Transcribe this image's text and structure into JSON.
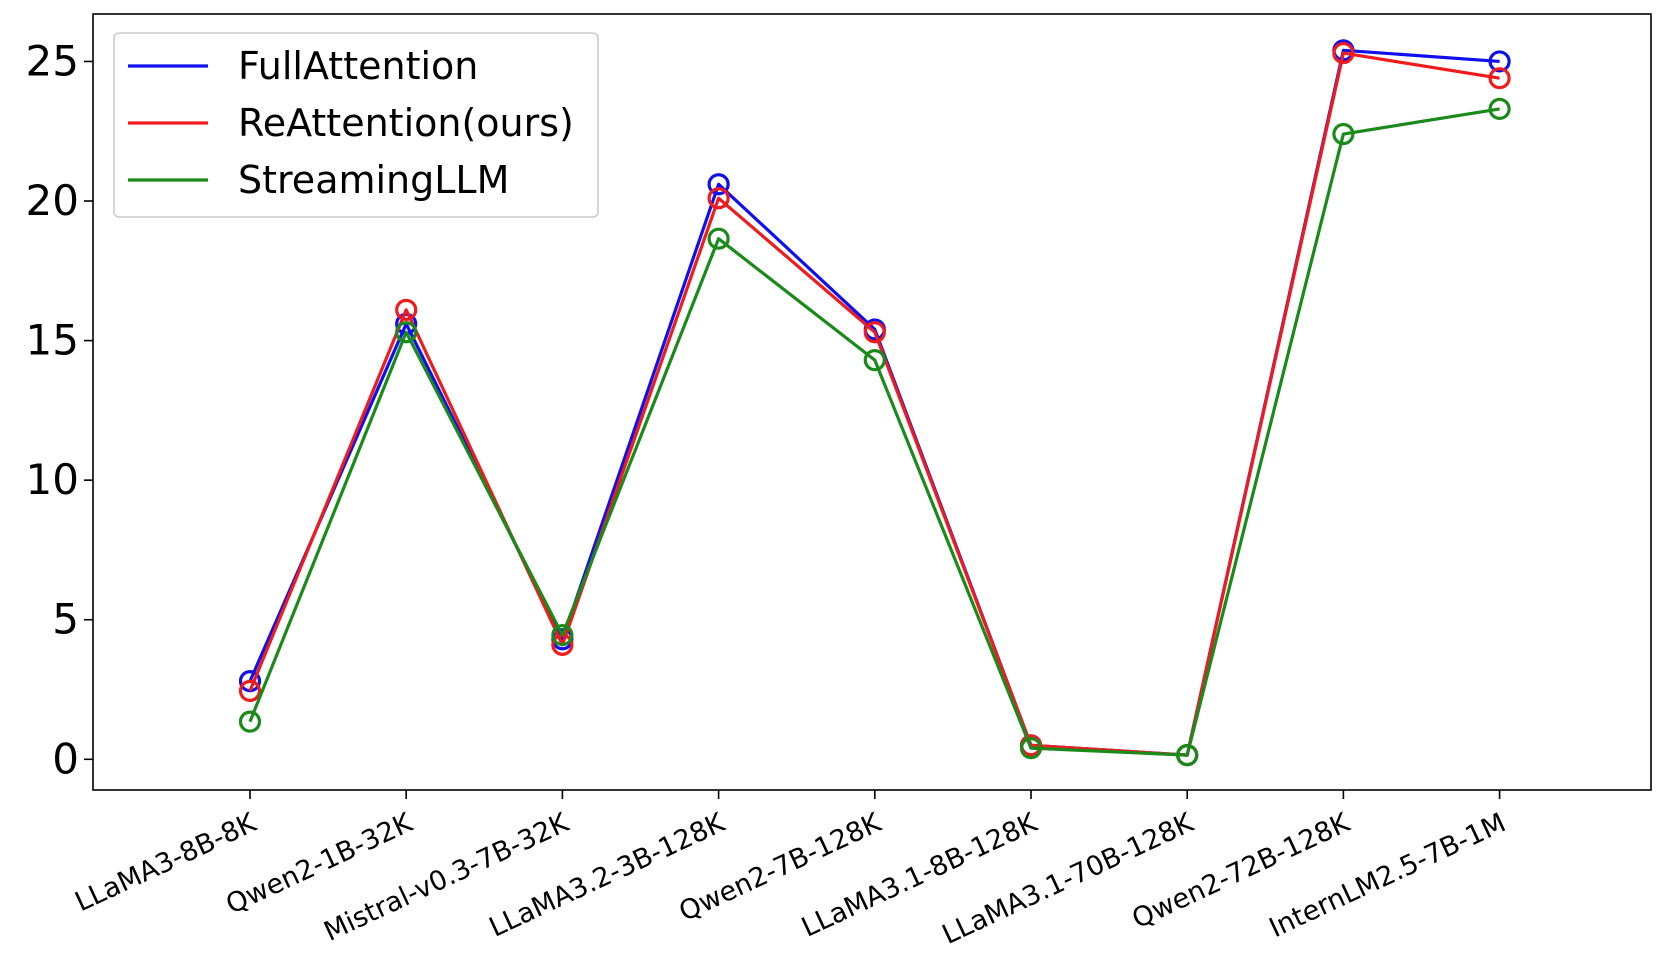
{
  "chart_data": {
    "type": "line",
    "title": "",
    "xlabel": "",
    "ylabel": "",
    "categories": [
      "LLaMA3-8B-8K",
      "Qwen2-1B-32K",
      "Mistral-v0.3-7B-32K",
      "LLaMA3.2-3B-128K",
      "Qwen2-7B-128K",
      "LLaMA3.1-8B-128K",
      "LLaMA3.1-70B-128K",
      "Qwen2-72B-128K",
      "InternLM2.5-7B-1M"
    ],
    "ylim": [
      -1.1,
      26.7
    ],
    "yticks": [
      0,
      5,
      10,
      15,
      20,
      25
    ],
    "legend_position": "top-left",
    "grid": false,
    "marker": "open-circle",
    "series": [
      {
        "name": "FullAttention",
        "color": "#1010ee",
        "values": [
          2.8,
          15.6,
          4.3,
          20.6,
          15.4,
          0.5,
          0.15,
          25.4,
          25.0
        ]
      },
      {
        "name": "ReAttention(ours)",
        "color": "#ee1c1c",
        "values": [
          2.45,
          16.1,
          4.1,
          20.1,
          15.3,
          0.5,
          0.15,
          25.3,
          24.4
        ]
      },
      {
        "name": "StreamingLLM",
        "color": "#1a8a1a",
        "values": [
          1.35,
          15.3,
          4.45,
          18.65,
          14.3,
          0.4,
          0.15,
          22.4,
          23.3
        ]
      }
    ]
  }
}
